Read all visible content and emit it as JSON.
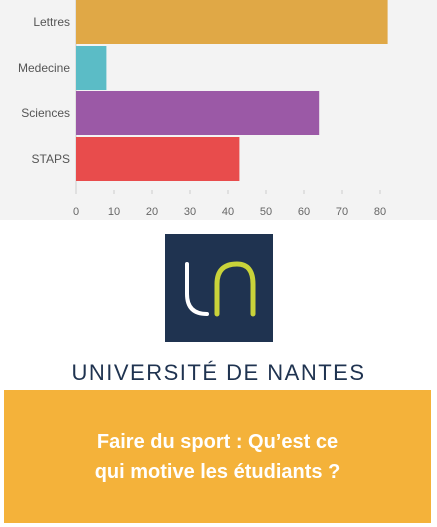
{
  "chart_data": {
    "type": "bar",
    "orientation": "horizontal",
    "categories": [
      "Lettres",
      "Medecine",
      "Sciences",
      "STAPS"
    ],
    "values": [
      82,
      8,
      64,
      43
    ],
    "xticks": [
      0,
      10,
      20,
      30,
      40,
      50,
      60,
      70,
      80
    ],
    "xlim": [
      0,
      90
    ],
    "colors": [
      "#e0a846",
      "#5bbcc6",
      "#9b59a6",
      "#e84c4c"
    ],
    "grid": false
  },
  "logo": {
    "name": "UNIVERSITÉ DE NANTES",
    "box_color": "#1f3350",
    "accent_color": "#c9d33a"
  },
  "banner": {
    "line1": "Faire du sport : Qu’est ce",
    "line2": "qui motive les étudiants ?",
    "color": "#f4b23a"
  }
}
